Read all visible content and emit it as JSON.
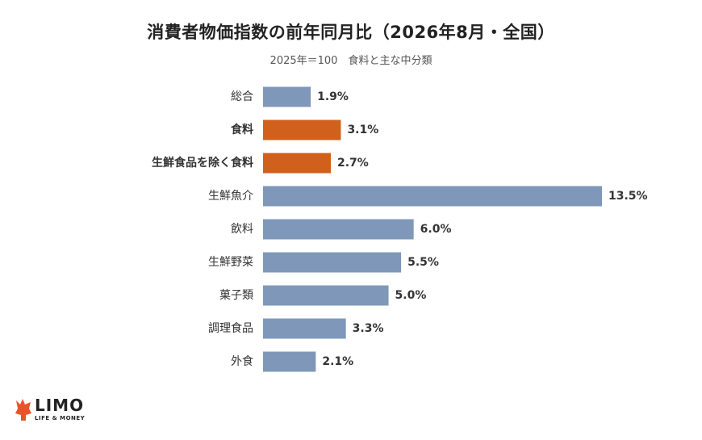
{
  "chart_data": {
    "type": "bar",
    "orientation": "horizontal",
    "title": "消費者物価指数の前年同月比（2026年8月・全国）",
    "subtitle": "2025年＝100　食料と主な中分類",
    "categories": [
      "総合",
      "食料",
      "生鮮食品を除く食料",
      "生鮮魚介",
      "飲料",
      "生鮮野菜",
      "菓子類",
      "調理食品",
      "外食"
    ],
    "values": [
      1.9,
      3.1,
      2.7,
      13.5,
      6.0,
      5.5,
      5.0,
      3.3,
      2.1
    ],
    "labels": [
      "1.9%",
      "3.1%",
      "2.7%",
      "13.5%",
      "6.0%",
      "5.5%",
      "5.0%",
      "3.3%",
      "2.1%"
    ],
    "highlighted": [
      false,
      true,
      true,
      false,
      false,
      false,
      false,
      false,
      false
    ],
    "xlim": [
      0,
      13.5
    ],
    "grid": false,
    "colors": {
      "default": "#7f98b9",
      "highlight": "#d1601d"
    }
  },
  "branding": {
    "logo_text": "LIMO",
    "logo_tagline": "LIFE & MONEY",
    "logo_color": "#e8542a"
  }
}
